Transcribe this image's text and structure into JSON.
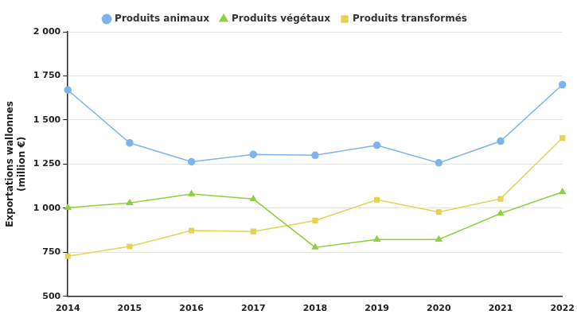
{
  "chart_data": {
    "type": "line",
    "y_label": [
      "Exportations wallonnes",
      "(million €)"
    ],
    "categories": [
      "2014",
      "2015",
      "2016",
      "2017",
      "2018",
      "2019",
      "2020",
      "2021",
      "2022"
    ],
    "series": [
      {
        "name": "Produits animaux",
        "color": "#7cb5ec",
        "marker": "circle",
        "values": [
          1670,
          1370,
          1263,
          1305,
          1300,
          1357,
          1257,
          1380,
          1700
        ]
      },
      {
        "name": "Produits végétaux",
        "color": "#90d040",
        "marker": "triangle",
        "values": [
          1003,
          1030,
          1080,
          1052,
          778,
          823,
          823,
          970,
          1092
        ]
      },
      {
        "name": "Produits transformés",
        "color": "#e4d354",
        "marker": "square",
        "values": [
          728,
          783,
          873,
          868,
          930,
          1048,
          978,
          1053,
          1398
        ]
      }
    ],
    "ylim": [
      500,
      2000
    ],
    "yticks": [
      500,
      750,
      {
        "value": 1000,
        "label": "1 000"
      },
      {
        "value": 1250,
        "label": "1 250"
      },
      {
        "value": 1500,
        "label": "1 500"
      },
      {
        "value": 1750,
        "label": "1 750"
      },
      {
        "value": 2000,
        "label": "2 000"
      }
    ],
    "grid": true,
    "legend": "top"
  }
}
